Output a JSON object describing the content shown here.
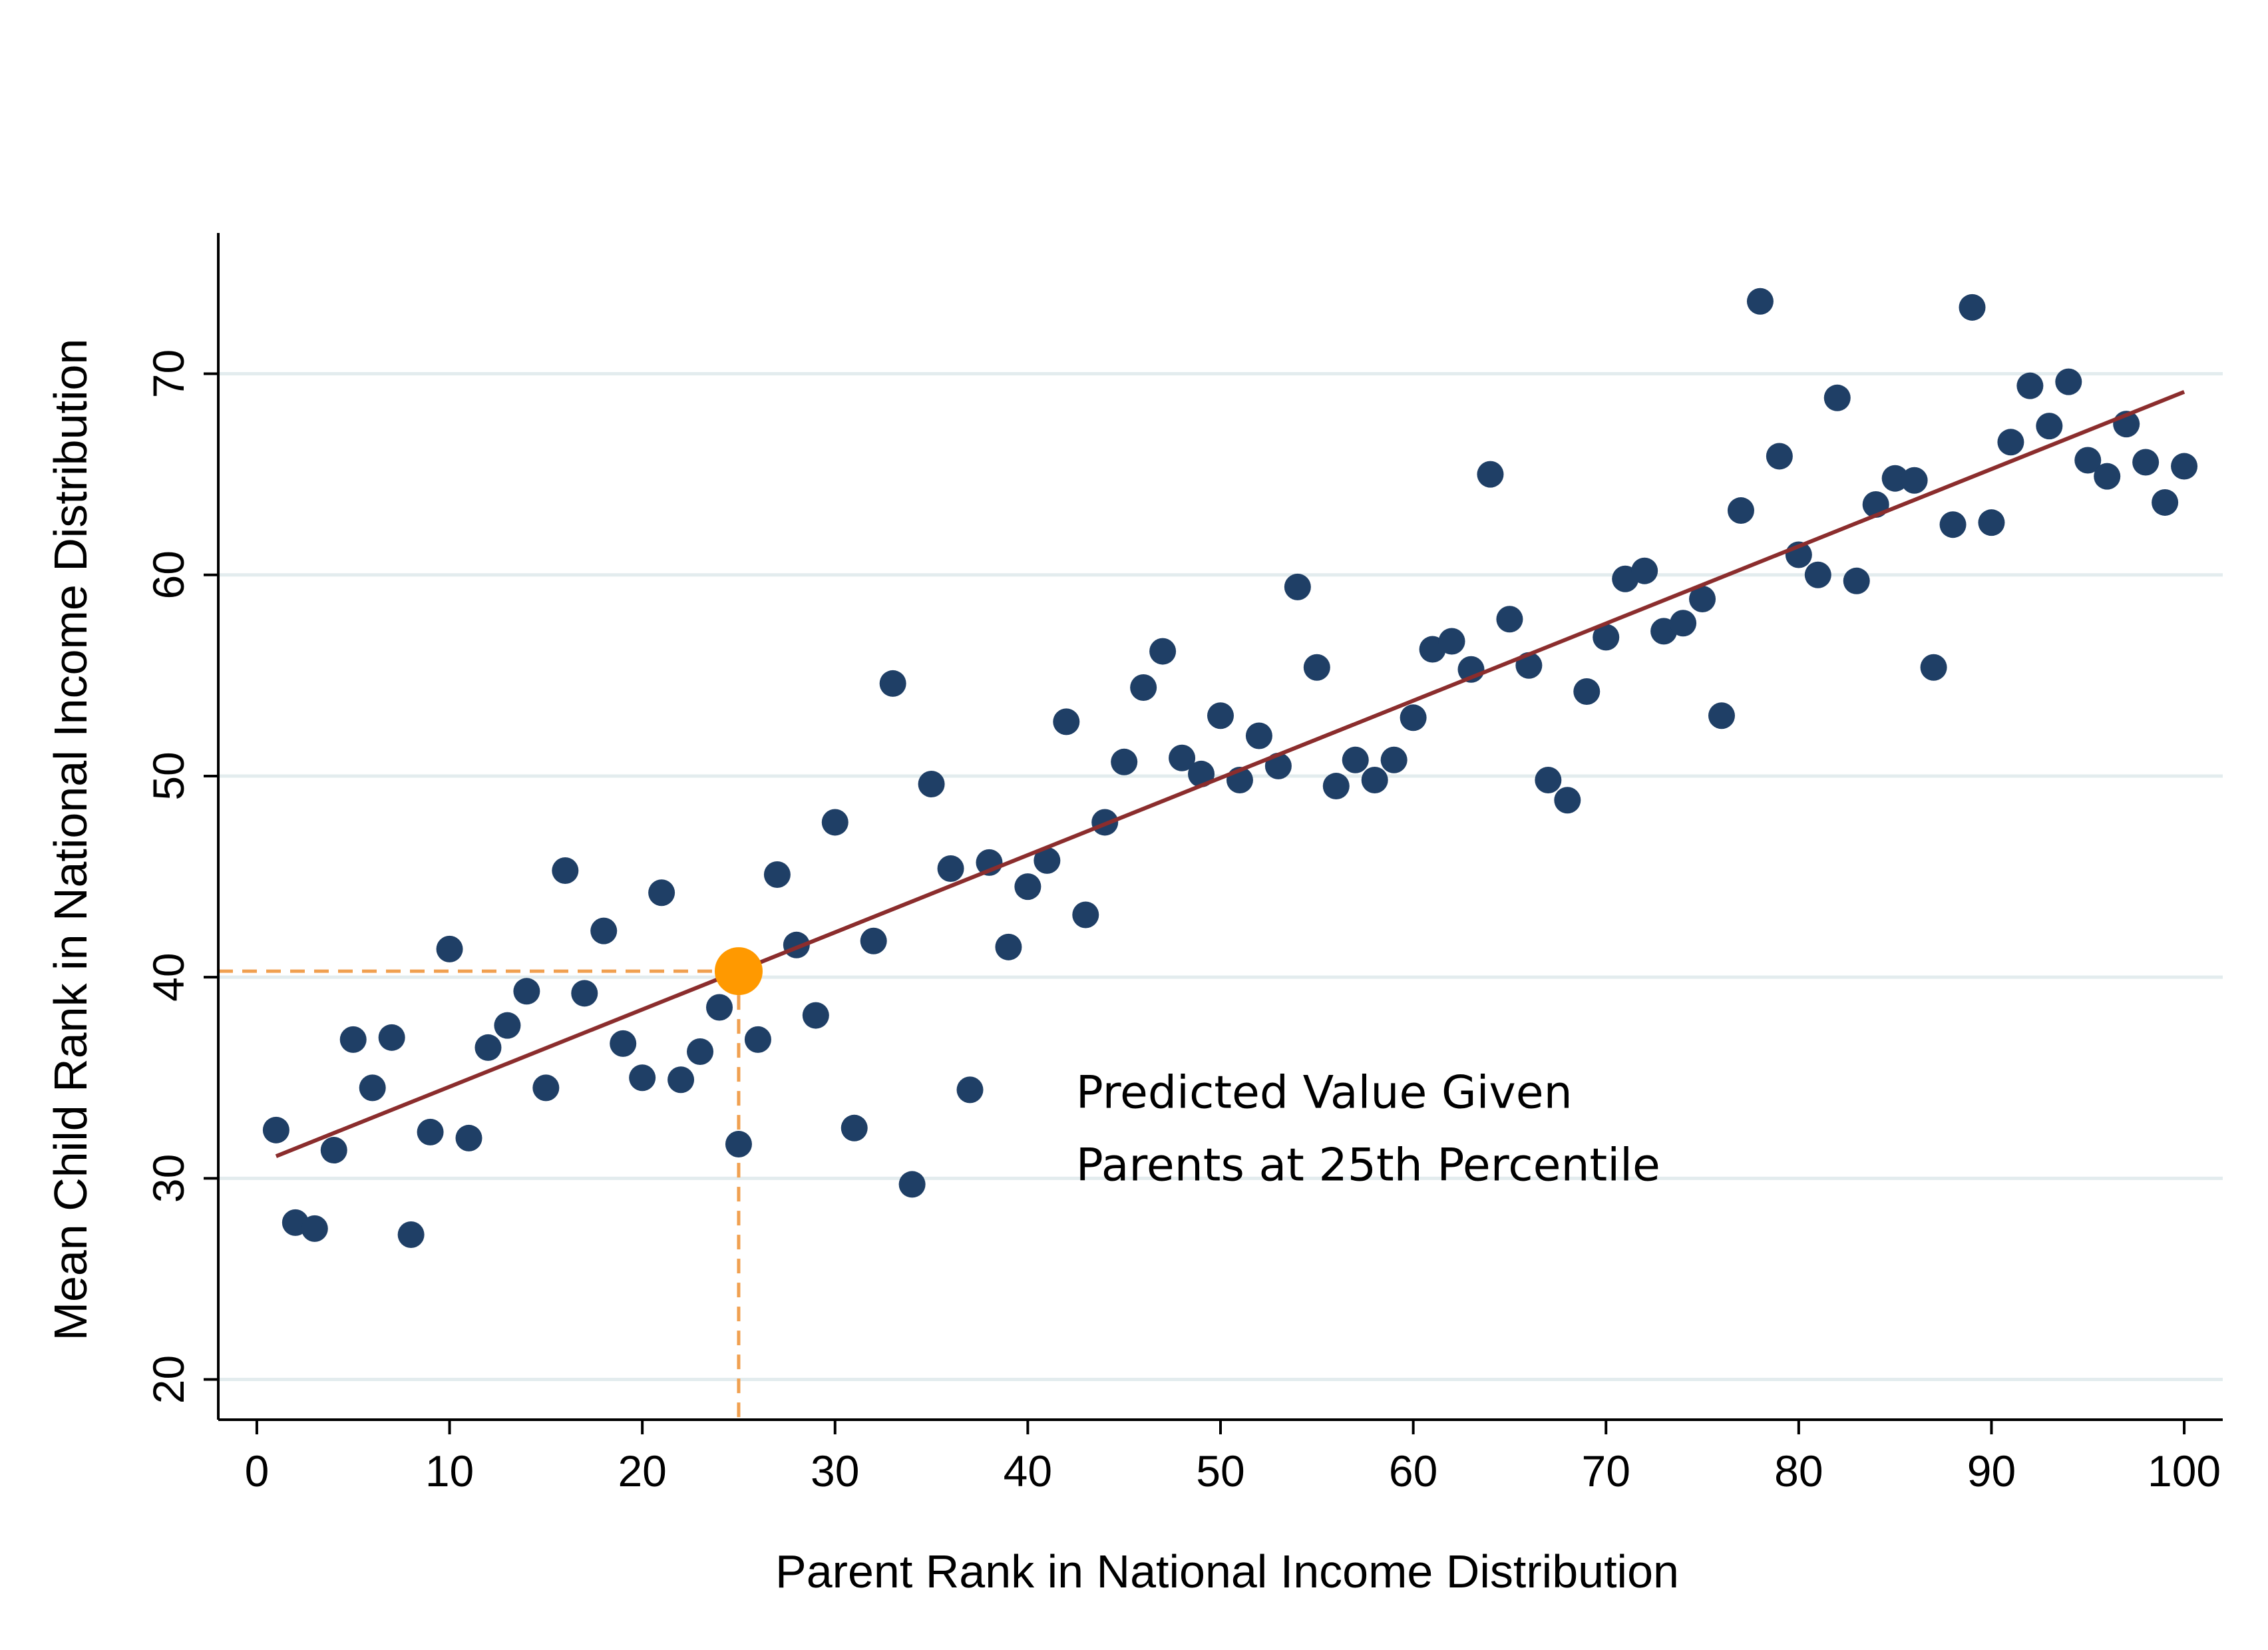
{
  "chart_data": {
    "type": "scatter",
    "xlabel": "Parent Rank in National Income Distribution",
    "ylabel": "Mean Child Rank in National Income Distribution",
    "xlim": [
      -2,
      102
    ],
    "ylim": [
      18,
      77
    ],
    "xticks": [
      0,
      10,
      20,
      30,
      40,
      50,
      60,
      70,
      80,
      90,
      100
    ],
    "yticks": [
      20,
      30,
      40,
      50,
      60,
      70
    ],
    "grid": "horizontal",
    "colors": {
      "points": "#1f3f66",
      "fit_line": "#8b2d2d",
      "highlight": "#ff9900",
      "guide": "#f0a050",
      "grid": "#e3ecee"
    },
    "series": [
      {
        "type": "scatter",
        "x": [
          1,
          2,
          3,
          4,
          5,
          6,
          7,
          8,
          9,
          10,
          11,
          12,
          13,
          14,
          15,
          16,
          17,
          18,
          19,
          20,
          21,
          22,
          23,
          24,
          25,
          26,
          27,
          28,
          29,
          30,
          31,
          32,
          33,
          34,
          35,
          36,
          37,
          38,
          39,
          40,
          41,
          42,
          43,
          44,
          45,
          46,
          47,
          48,
          49,
          50,
          51,
          52,
          53,
          54,
          55,
          56,
          57,
          58,
          59,
          60,
          61,
          62,
          63,
          64,
          65,
          66,
          67,
          68,
          69,
          70,
          71,
          72,
          73,
          74,
          75,
          76,
          77,
          78,
          79,
          80,
          81,
          82,
          83,
          84,
          85,
          86,
          87,
          88,
          89,
          90,
          91,
          92,
          93,
          94,
          95,
          96,
          97,
          98,
          99,
          100
        ],
        "y": [
          32.4,
          27.8,
          27.5,
          31.4,
          36.9,
          34.5,
          37.0,
          27.2,
          32.3,
          41.4,
          32.0,
          36.5,
          37.6,
          39.3,
          34.5,
          45.3,
          39.2,
          42.3,
          36.7,
          35.0,
          44.2,
          34.9,
          36.3,
          38.5,
          31.7,
          36.9,
          45.1,
          41.6,
          38.1,
          47.7,
          32.5,
          41.8,
          54.6,
          29.7,
          49.6,
          45.4,
          34.4,
          45.7,
          41.5,
          44.5,
          45.8,
          52.7,
          43.1,
          47.7,
          50.7,
          54.4,
          56.2,
          50.9,
          50.1,
          53.0,
          49.8,
          52.0,
          50.5,
          59.4,
          55.4,
          49.5,
          50.8,
          49.8,
          50.8,
          52.9,
          56.3,
          56.7,
          55.3,
          65.0,
          57.8,
          55.5,
          49.8,
          48.8,
          54.2,
          56.9,
          59.8,
          60.2,
          57.2,
          57.6,
          58.8,
          53.0,
          63.2,
          73.6,
          65.9,
          61.0,
          60.0,
          68.8,
          59.7,
          63.5,
          64.8,
          64.7,
          55.4,
          62.5,
          73.3,
          62.6,
          66.6,
          69.4,
          67.4,
          69.6,
          65.7,
          64.9,
          67.5,
          65.6,
          63.6,
          65.4
        ]
      },
      {
        "type": "line",
        "x": [
          1,
          100
        ],
        "y": [
          31.1,
          69.1
        ]
      }
    ],
    "highlight_point": {
      "x": 25,
      "y": 40.3
    },
    "annotations": [
      {
        "text": "Predicted Value Given",
        "x": 42.5,
        "y": 33.5
      },
      {
        "text": "Parents at 25th Percentile",
        "x": 42.5,
        "y": 29.9
      }
    ]
  }
}
